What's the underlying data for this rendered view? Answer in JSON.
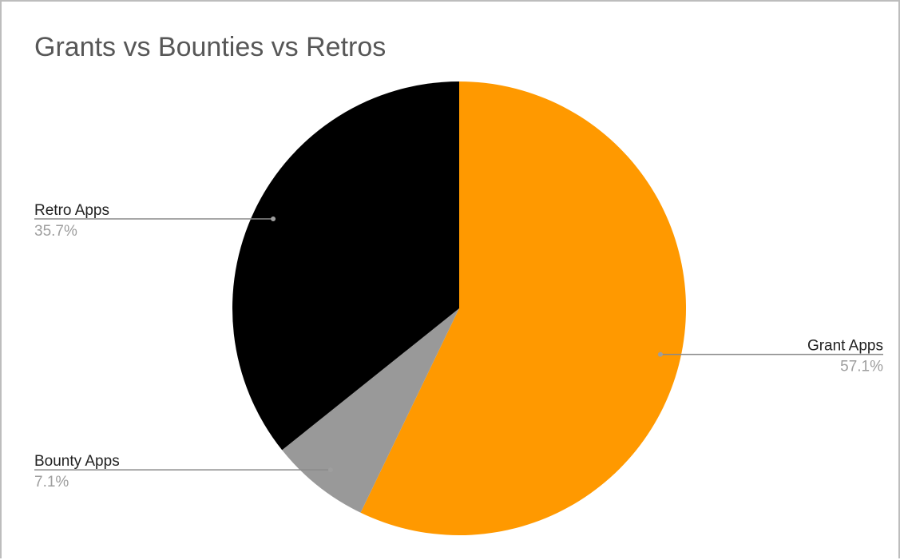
{
  "chart_data": {
    "type": "pie",
    "title": "Grants vs Bounties vs Retros",
    "start_angle_deg": 0,
    "direction": "clockwise",
    "slices": [
      {
        "label": "Grant Apps",
        "value": 57.1,
        "display": "57.1%",
        "color": "#ff9900",
        "label_side": "right"
      },
      {
        "label": "Bounty Apps",
        "value": 7.1,
        "display": "7.1%",
        "color": "#999999",
        "label_side": "left"
      },
      {
        "label": "Retro Apps",
        "value": 35.7,
        "display": "35.7%",
        "color": "#000000",
        "label_side": "left"
      }
    ]
  }
}
